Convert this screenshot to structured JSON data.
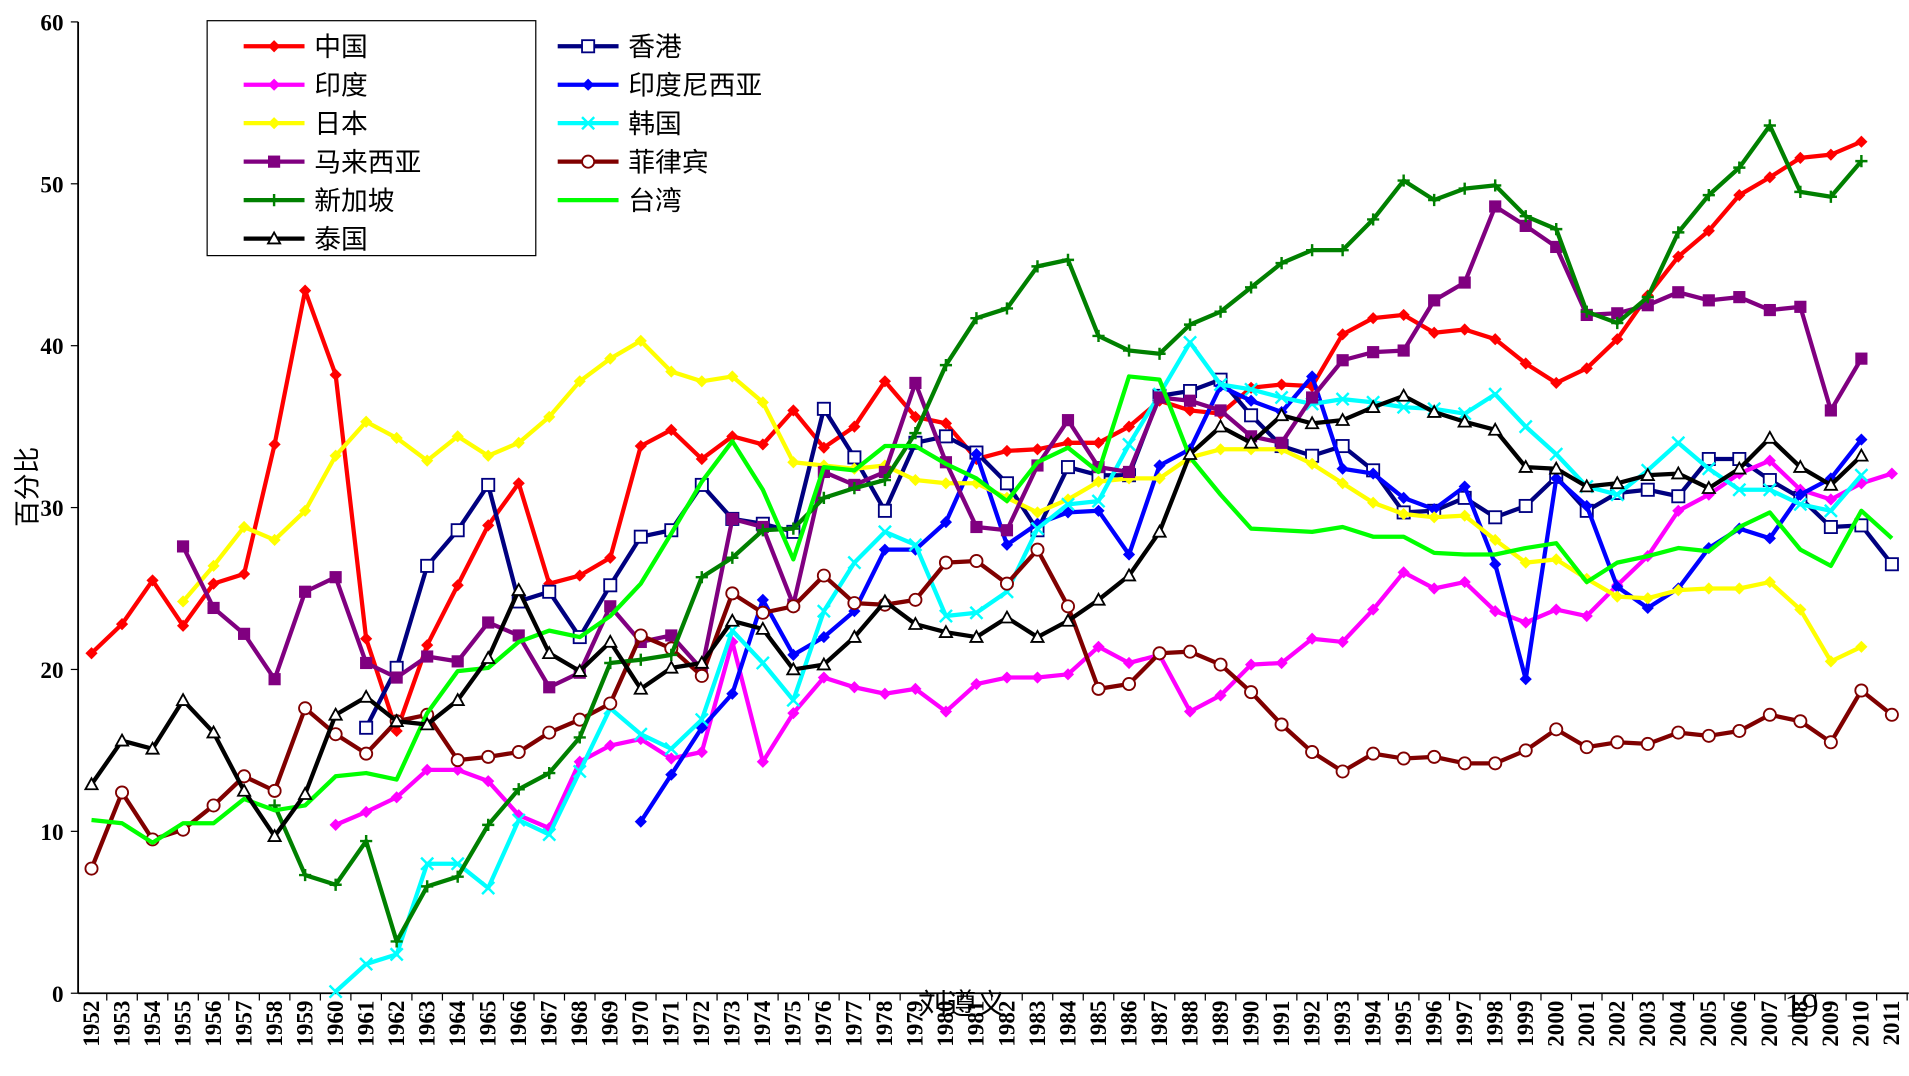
{
  "chart_data": {
    "type": "line",
    "y_label": "百分比",
    "annotations": [
      "刘遵义",
      "19"
    ],
    "categories": [
      "1952",
      "1953",
      "1954",
      "1955",
      "1956",
      "1957",
      "1958",
      "1959",
      "1960",
      "1961",
      "1962",
      "1963",
      "1964",
      "1965",
      "1966",
      "1967",
      "1968",
      "1969",
      "1970",
      "1971",
      "1972",
      "1973",
      "1974",
      "1975",
      "1976",
      "1977",
      "1978",
      "1979",
      "1980",
      "1981",
      "1982",
      "1983",
      "1984",
      "1985",
      "1986",
      "1987",
      "1988",
      "1989",
      "1990",
      "1991",
      "1992",
      "1993",
      "1994",
      "1995",
      "1996",
      "1997",
      "1998",
      "1999",
      "2000",
      "2001",
      "2002",
      "2003",
      "2004",
      "2005",
      "2006",
      "2007",
      "2008",
      "2009",
      "2010",
      "2011"
    ],
    "ylim": [
      0,
      60
    ],
    "yticks": [
      0,
      10,
      20,
      30,
      40,
      50,
      60
    ],
    "series": [
      {
        "name": "中国",
        "color": "#ff0000",
        "marker": "diamond",
        "values": [
          21.0,
          22.8,
          25.5,
          22.7,
          25.3,
          25.9,
          33.9,
          43.4,
          38.2,
          21.9,
          16.2,
          21.5,
          25.2,
          28.9,
          31.5,
          25.3,
          25.8,
          26.9,
          33.8,
          34.8,
          33.0,
          34.4,
          33.9,
          36.0,
          33.7,
          35.0,
          37.8,
          35.6,
          35.2,
          33.0,
          33.5,
          33.6,
          34.0,
          34.0,
          35.0,
          36.6,
          36.0,
          35.8,
          37.4,
          37.6,
          37.5,
          40.7,
          41.7,
          41.9,
          40.8,
          41.0,
          40.4,
          38.9,
          37.7,
          38.6,
          40.4,
          43.1,
          45.5,
          47.1,
          49.3,
          50.4,
          51.6,
          51.8,
          52.6,
          null
        ]
      },
      {
        "name": "香港",
        "color": "#000080",
        "marker": "open-square",
        "values": [
          null,
          null,
          null,
          null,
          null,
          null,
          null,
          null,
          null,
          16.4,
          20.1,
          26.4,
          28.6,
          31.4,
          24.2,
          24.8,
          22.0,
          25.2,
          28.2,
          28.6,
          31.4,
          29.3,
          29.0,
          28.5,
          36.1,
          33.1,
          29.8,
          34.0,
          34.4,
          33.4,
          31.5,
          28.6,
          32.5,
          32.0,
          32.0,
          36.9,
          37.2,
          37.9,
          35.7,
          33.8,
          33.2,
          33.8,
          32.3,
          29.7,
          29.8,
          30.6,
          29.4,
          30.1,
          31.9,
          29.8,
          30.9,
          31.1,
          30.7,
          33.0,
          33.0,
          31.7,
          30.6,
          28.8,
          28.9,
          26.5
        ]
      },
      {
        "name": "印度",
        "color": "#ff00ff",
        "marker": "diamond",
        "values": [
          null,
          null,
          null,
          null,
          null,
          null,
          null,
          null,
          10.4,
          11.2,
          12.1,
          13.8,
          13.8,
          13.1,
          11.0,
          10.2,
          14.3,
          15.3,
          15.7,
          14.5,
          14.9,
          21.7,
          14.3,
          17.3,
          19.5,
          18.9,
          18.5,
          18.8,
          17.4,
          19.1,
          19.5,
          19.5,
          19.7,
          21.4,
          20.4,
          20.9,
          17.4,
          18.4,
          20.3,
          20.4,
          21.9,
          21.7,
          23.7,
          26.0,
          25.0,
          25.4,
          23.6,
          22.9,
          23.7,
          23.3,
          25.2,
          27.0,
          29.8,
          30.8,
          32.1,
          32.9,
          31.1,
          30.5,
          31.5,
          32.1
        ]
      },
      {
        "name": "印度尼西亚",
        "color": "#0000ff",
        "marker": "diamond",
        "values": [
          null,
          null,
          null,
          null,
          null,
          null,
          null,
          null,
          null,
          null,
          null,
          null,
          null,
          null,
          null,
          null,
          null,
          null,
          10.6,
          13.5,
          16.4,
          18.5,
          24.3,
          20.9,
          22.0,
          23.6,
          27.4,
          27.4,
          29.1,
          33.3,
          27.7,
          29.0,
          29.7,
          29.8,
          27.1,
          32.6,
          33.6,
          37.5,
          36.6,
          35.9,
          38.1,
          32.4,
          32.1,
          30.6,
          29.9,
          31.3,
          26.5,
          19.4,
          31.8,
          30.1,
          25.1,
          23.8,
          25.0,
          27.5,
          28.7,
          28.1,
          30.8,
          31.8,
          34.2,
          null
        ]
      },
      {
        "name": "日本",
        "color": "#ffff00",
        "marker": "diamond",
        "values": [
          null,
          null,
          null,
          24.2,
          26.4,
          28.8,
          28.0,
          29.8,
          33.2,
          35.3,
          34.3,
          32.9,
          34.4,
          33.2,
          34.0,
          35.6,
          37.8,
          39.2,
          40.3,
          38.4,
          37.8,
          38.1,
          36.5,
          32.8,
          32.6,
          32.4,
          32.6,
          31.7,
          31.5,
          31.5,
          30.6,
          29.7,
          30.5,
          31.6,
          31.8,
          31.8,
          33.1,
          33.6,
          33.6,
          33.6,
          32.7,
          31.5,
          30.3,
          29.6,
          29.4,
          29.5,
          28.0,
          26.6,
          26.8,
          25.6,
          24.5,
          24.4,
          24.9,
          25.0,
          25.0,
          25.4,
          23.7,
          20.5,
          21.4,
          null
        ]
      },
      {
        "name": "韩国",
        "color": "#00ffff",
        "marker": "x",
        "values": [
          null,
          null,
          null,
          null,
          null,
          null,
          null,
          null,
          0.1,
          1.8,
          2.4,
          8.0,
          8.0,
          6.5,
          10.7,
          9.8,
          13.7,
          17.6,
          16.0,
          15.1,
          16.9,
          22.4,
          20.4,
          18.1,
          23.6,
          26.6,
          28.5,
          27.7,
          23.3,
          23.5,
          24.8,
          28.7,
          30.2,
          30.4,
          33.9,
          37.0,
          40.2,
          37.6,
          37.3,
          36.8,
          36.4,
          36.7,
          36.5,
          36.2,
          36.1,
          35.8,
          37.0,
          35.0,
          33.3,
          31.3,
          30.8,
          32.3,
          34.0,
          32.4,
          31.1,
          31.1,
          30.2,
          29.8,
          32.0,
          null
        ]
      },
      {
        "name": "马来西亚",
        "color": "#800080",
        "marker": "square",
        "values": [
          null,
          null,
          null,
          27.6,
          23.8,
          22.2,
          19.4,
          24.8,
          25.7,
          20.4,
          19.5,
          20.8,
          20.5,
          22.9,
          22.1,
          18.9,
          19.8,
          23.9,
          21.7,
          22.1,
          20.0,
          29.3,
          28.8,
          24.0,
          32.2,
          31.4,
          32.2,
          37.7,
          32.8,
          28.8,
          28.6,
          32.6,
          35.4,
          32.5,
          32.2,
          36.8,
          36.6,
          36.0,
          34.4,
          34.0,
          36.8,
          39.1,
          39.6,
          39.7,
          42.8,
          43.9,
          48.6,
          47.4,
          46.1,
          41.9,
          42.0,
          42.5,
          43.3,
          42.8,
          43.0,
          42.2,
          42.4,
          36.0,
          39.2,
          null
        ]
      },
      {
        "name": "菲律宾",
        "color": "#800000",
        "marker": "open-circle",
        "values": [
          7.7,
          12.4,
          9.5,
          10.1,
          11.6,
          13.4,
          12.5,
          17.6,
          16.0,
          14.8,
          16.8,
          17.2,
          14.4,
          14.6,
          14.9,
          16.1,
          16.9,
          17.9,
          22.1,
          21.3,
          19.6,
          24.7,
          23.5,
          23.9,
          25.8,
          24.1,
          24.0,
          24.3,
          26.6,
          26.7,
          25.3,
          27.4,
          23.9,
          18.8,
          19.1,
          21.0,
          21.1,
          20.3,
          18.6,
          16.6,
          14.9,
          13.7,
          14.8,
          14.5,
          14.6,
          14.2,
          14.2,
          15.0,
          16.3,
          15.2,
          15.5,
          15.4,
          16.1,
          15.9,
          16.2,
          17.2,
          16.8,
          15.5,
          18.7,
          17.2
        ]
      },
      {
        "name": "新加坡",
        "color": "#008000",
        "marker": "plus",
        "values": [
          null,
          null,
          null,
          null,
          null,
          null,
          11.6,
          7.3,
          6.7,
          9.4,
          3.2,
          6.6,
          7.2,
          10.4,
          12.6,
          13.6,
          15.8,
          20.4,
          20.6,
          20.9,
          25.7,
          26.9,
          28.6,
          28.7,
          30.6,
          31.2,
          31.7,
          34.6,
          38.8,
          41.7,
          42.3,
          44.9,
          45.3,
          40.6,
          39.7,
          39.5,
          41.3,
          42.1,
          43.6,
          45.1,
          45.9,
          45.9,
          47.8,
          50.2,
          49.0,
          49.7,
          49.9,
          48.0,
          47.2,
          42.1,
          41.4,
          43.0,
          47.0,
          49.3,
          51.0,
          53.6,
          49.5,
          49.2,
          51.4,
          null
        ]
      },
      {
        "name": "台湾",
        "color": "#00ff00",
        "marker": "none",
        "values": [
          10.7,
          10.5,
          9.3,
          10.5,
          10.5,
          12.0,
          11.3,
          11.6,
          13.4,
          13.6,
          13.2,
          17.3,
          19.9,
          20.1,
          21.7,
          22.4,
          22.0,
          23.3,
          25.3,
          28.4,
          31.6,
          34.1,
          31.1,
          26.8,
          32.5,
          32.3,
          33.8,
          33.8,
          32.7,
          31.8,
          30.4,
          32.8,
          33.7,
          32.2,
          38.1,
          37.9,
          33.1,
          30.8,
          28.7,
          28.6,
          28.5,
          28.8,
          28.2,
          28.2,
          27.2,
          27.1,
          27.1,
          27.5,
          27.8,
          25.4,
          26.6,
          27.0,
          27.5,
          27.3,
          28.8,
          29.7,
          27.4,
          26.4,
          29.8,
          28.1
        ]
      },
      {
        "name": "泰国",
        "color": "#000000",
        "marker": "open-triangle",
        "values": [
          12.9,
          15.6,
          15.1,
          18.1,
          16.1,
          12.5,
          9.7,
          12.3,
          17.2,
          18.3,
          16.8,
          16.6,
          18.1,
          20.7,
          24.9,
          21.0,
          19.9,
          21.7,
          18.8,
          20.1,
          20.4,
          23.0,
          22.5,
          20.0,
          20.3,
          22.0,
          24.2,
          22.8,
          22.3,
          22.0,
          23.2,
          22.0,
          23.0,
          24.3,
          25.8,
          28.5,
          33.3,
          35.0,
          34.0,
          35.7,
          35.2,
          35.4,
          36.2,
          36.9,
          35.9,
          35.3,
          34.8,
          32.5,
          32.4,
          31.3,
          31.5,
          32.0,
          32.1,
          31.2,
          32.4,
          34.3,
          32.5,
          31.4,
          33.2,
          null
        ]
      }
    ]
  }
}
